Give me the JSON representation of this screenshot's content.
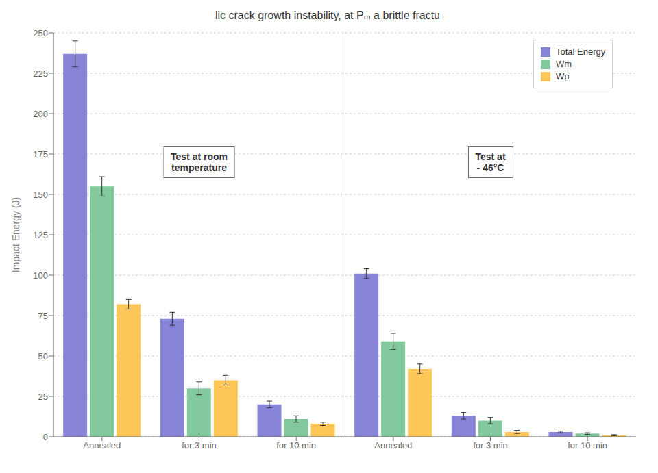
{
  "chart_data": {
    "type": "bar",
    "title": "lic crack growth instability, at Pₘ a brittle fractu",
    "ylabel": "Impact Energy (J)",
    "categories": [
      "Annealed",
      "for 3 min",
      "for 10 min",
      "Annealed",
      "for 3 min",
      "for 10 min"
    ],
    "series": [
      {
        "name": "Total Energy",
        "color": "#8884d8",
        "values": [
          237,
          73,
          20,
          101,
          13,
          3
        ],
        "errors": [
          8,
          4,
          2,
          3,
          2,
          0.5
        ]
      },
      {
        "name": "Wm",
        "color": "#82ca9d",
        "values": [
          155,
          30,
          11,
          59,
          10,
          2
        ],
        "errors": [
          6,
          4,
          2,
          5,
          2,
          0.5
        ]
      },
      {
        "name": "Wp",
        "color": "#ffc658",
        "values": [
          82,
          35,
          8,
          42,
          3,
          1
        ],
        "errors": [
          3,
          3,
          1,
          3,
          1,
          0.3
        ]
      }
    ],
    "ylim": [
      0,
      250
    ],
    "yticks": [
      0,
      25,
      50,
      75,
      100,
      125,
      150,
      175,
      200,
      225,
      250
    ],
    "grid": true,
    "legend": "upper right",
    "annotations": [
      "Test at room\ntemperature",
      "Test at\n- 46°C"
    ]
  }
}
